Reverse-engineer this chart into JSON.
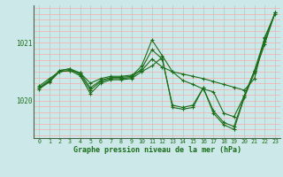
{
  "title": "Graphe pression niveau de la mer (hPa)",
  "background_color": "#cde8e8",
  "grid_color_v": "#aad4cc",
  "grid_color_h": "#ffaaaa",
  "line_color": "#1a6e1a",
  "xlim": [
    -0.5,
    23.5
  ],
  "ylim": [
    1019.35,
    1021.65
  ],
  "yticks": [
    1020,
    1021
  ],
  "xticks": [
    0,
    1,
    2,
    3,
    4,
    5,
    6,
    7,
    8,
    9,
    10,
    11,
    12,
    13,
    14,
    15,
    16,
    17,
    18,
    19,
    20,
    21,
    22,
    23
  ],
  "series": [
    [
      1020.25,
      1020.38,
      1020.5,
      1020.52,
      1020.48,
      1020.3,
      1020.38,
      1020.42,
      1020.42,
      1020.44,
      1020.52,
      1020.72,
      1020.58,
      1020.5,
      1020.46,
      1020.42,
      1020.38,
      1020.33,
      1020.28,
      1020.23,
      1020.18,
      1020.38,
      1021.1,
      1021.5
    ],
    [
      1020.22,
      1020.35,
      1020.52,
      1020.55,
      1020.48,
      1020.22,
      1020.35,
      1020.4,
      1020.4,
      1020.42,
      1020.6,
      1021.05,
      1020.78,
      1020.5,
      1020.35,
      1020.28,
      1020.2,
      1020.15,
      1019.78,
      1019.72,
      1020.08,
      1020.52,
      1021.08,
      1021.52
    ],
    [
      1020.22,
      1020.33,
      1020.52,
      1020.55,
      1020.45,
      1020.18,
      1020.33,
      1020.38,
      1020.38,
      1020.4,
      1020.55,
      1020.88,
      1020.72,
      1019.92,
      1019.88,
      1019.92,
      1020.22,
      1019.82,
      1019.62,
      1019.55,
      1020.08,
      1020.52,
      1021.02,
      1021.52
    ],
    [
      1020.2,
      1020.32,
      1020.5,
      1020.52,
      1020.43,
      1020.12,
      1020.3,
      1020.36,
      1020.36,
      1020.38,
      1020.5,
      1020.6,
      1020.75,
      1019.88,
      1019.85,
      1019.88,
      1020.22,
      1019.78,
      1019.58,
      1019.5,
      1020.05,
      1020.48,
      1020.98,
      1021.52
    ]
  ]
}
